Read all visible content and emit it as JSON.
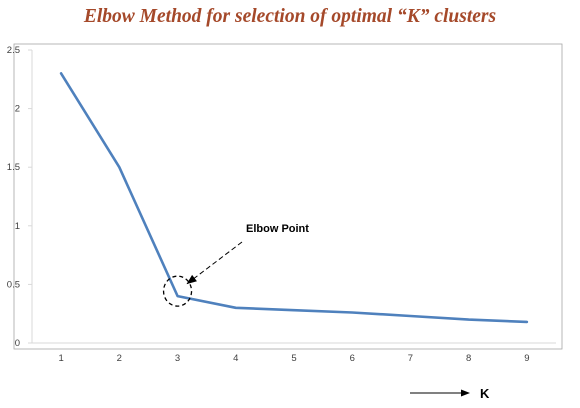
{
  "chart_data": {
    "type": "line",
    "title": "Elbow Method for selection of optimal “K” clusters",
    "xlabel": "K",
    "ylabel": "",
    "x": [
      1,
      2,
      3,
      4,
      5,
      6,
      7,
      8,
      9
    ],
    "series": [
      {
        "values": [
          2.3,
          1.5,
          0.4,
          0.3,
          0.28,
          0.26,
          0.23,
          0.2,
          0.18
        ]
      }
    ],
    "ylim": [
      0,
      2.5
    ],
    "yticks": [
      "0",
      "0.5",
      "1",
      "1.5",
      "2",
      "2.5"
    ],
    "xticks": [
      "1",
      "2",
      "3",
      "4",
      "5",
      "6",
      "7",
      "8",
      "9"
    ],
    "grid": false,
    "legend": "none",
    "annotation": {
      "label": "Elbow Point",
      "x": 3,
      "y": 0.4
    },
    "colors": {
      "line": "#4f81bd",
      "title": "#a5492a",
      "axis": "#d9d9d9",
      "frame": "#a6a6a6"
    }
  }
}
